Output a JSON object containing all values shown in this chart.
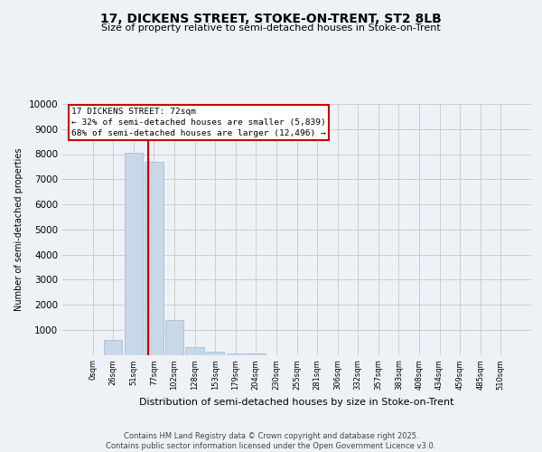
{
  "title": "17, DICKENS STREET, STOKE-ON-TRENT, ST2 8LB",
  "subtitle": "Size of property relative to semi-detached houses in Stoke-on-Trent",
  "xlabel": "Distribution of semi-detached houses by size in Stoke-on-Trent",
  "ylabel": "Number of semi-detached properties",
  "footer_line1": "Contains HM Land Registry data © Crown copyright and database right 2025.",
  "footer_line2": "Contains public sector information licensed under the Open Government Licence v3.0.",
  "bar_labels": [
    "0sqm",
    "26sqm",
    "51sqm",
    "77sqm",
    "102sqm",
    "128sqm",
    "153sqm",
    "179sqm",
    "204sqm",
    "230sqm",
    "255sqm",
    "281sqm",
    "306sqm",
    "332sqm",
    "357sqm",
    "383sqm",
    "408sqm",
    "434sqm",
    "459sqm",
    "485sqm",
    "510sqm"
  ],
  "bar_values": [
    0,
    580,
    8050,
    7700,
    1400,
    300,
    130,
    70,
    45,
    0,
    0,
    0,
    0,
    0,
    0,
    0,
    0,
    0,
    0,
    0,
    0
  ],
  "bar_color": "#c8d8e8",
  "bar_edgecolor": "#a0b8cc",
  "annotation_title": "17 DICKENS STREET: 72sqm",
  "annotation_line1": "← 32% of semi-detached houses are smaller (5,839)",
  "annotation_line2": "68% of semi-detached houses are larger (12,496) →",
  "annotation_box_color": "#ffffff",
  "annotation_box_edgecolor": "#cc0000",
  "vline_color": "#cc0000",
  "vline_x": 2.72,
  "ylim": [
    0,
    10000
  ],
  "yticks": [
    0,
    1000,
    2000,
    3000,
    4000,
    5000,
    6000,
    7000,
    8000,
    9000,
    10000
  ],
  "grid_color": "#cccccc",
  "bg_color": "#eef2f7",
  "title_fontsize": 10,
  "subtitle_fontsize": 8,
  "ylabel_fontsize": 7,
  "xlabel_fontsize": 8
}
